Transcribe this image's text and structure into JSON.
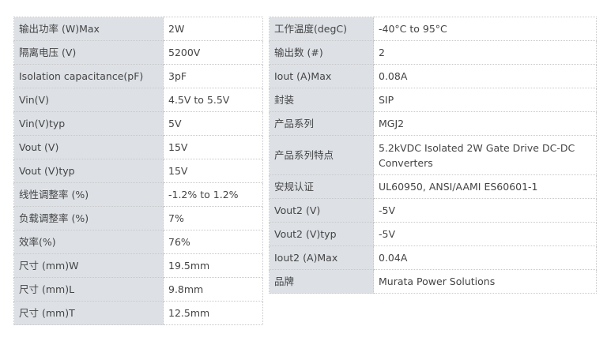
{
  "left_table": [
    {
      "label": "输出功率 (W)Max",
      "value": "2W"
    },
    {
      "label": "隔离电压 (V)",
      "value": "5200V"
    },
    {
      "label": "Isolation capacitance(pF)",
      "value": "3pF"
    },
    {
      "label": "Vin(V)",
      "value": "4.5V to 5.5V"
    },
    {
      "label": "Vin(V)typ",
      "value": "5V"
    },
    {
      "label": "Vout (V)",
      "value": "15V"
    },
    {
      "label": "Vout (V)typ",
      "value": "15V"
    },
    {
      "label": "线性调整率 (%)",
      "value": "-1.2% to 1.2%"
    },
    {
      "label": "负载调整率 (%)",
      "value": "7%"
    },
    {
      "label": "效率(%)",
      "value": "76%"
    },
    {
      "label": "尺寸 (mm)W",
      "value": "19.5mm"
    },
    {
      "label": "尺寸 (mm)L",
      "value": "9.8mm"
    },
    {
      "label": "尺寸 (mm)T",
      "value": "12.5mm"
    }
  ],
  "right_table": [
    {
      "label": "工作温度(degC)",
      "value": "-40°C to 95°C"
    },
    {
      "label": "输出数 (#)",
      "value": "2"
    },
    {
      "label": "Iout (A)Max",
      "value": "0.08A"
    },
    {
      "label": "封装",
      "value": "SIP"
    },
    {
      "label": "产品系列",
      "value": "MGJ2"
    },
    {
      "label": "产品系列特点",
      "value": "5.2kVDC Isolated 2W Gate Drive DC-DC Converters"
    },
    {
      "label": "安规认证",
      "value": "UL60950, ANSI/AAMI ES60601-1"
    },
    {
      "label": "Vout2 (V)",
      "value": "-5V"
    },
    {
      "label": "Vout2 (V)typ",
      "value": "-5V"
    },
    {
      "label": "Iout2 (A)Max",
      "value": "0.04A"
    },
    {
      "label": "品牌",
      "value": "Murata Power Solutions"
    }
  ]
}
